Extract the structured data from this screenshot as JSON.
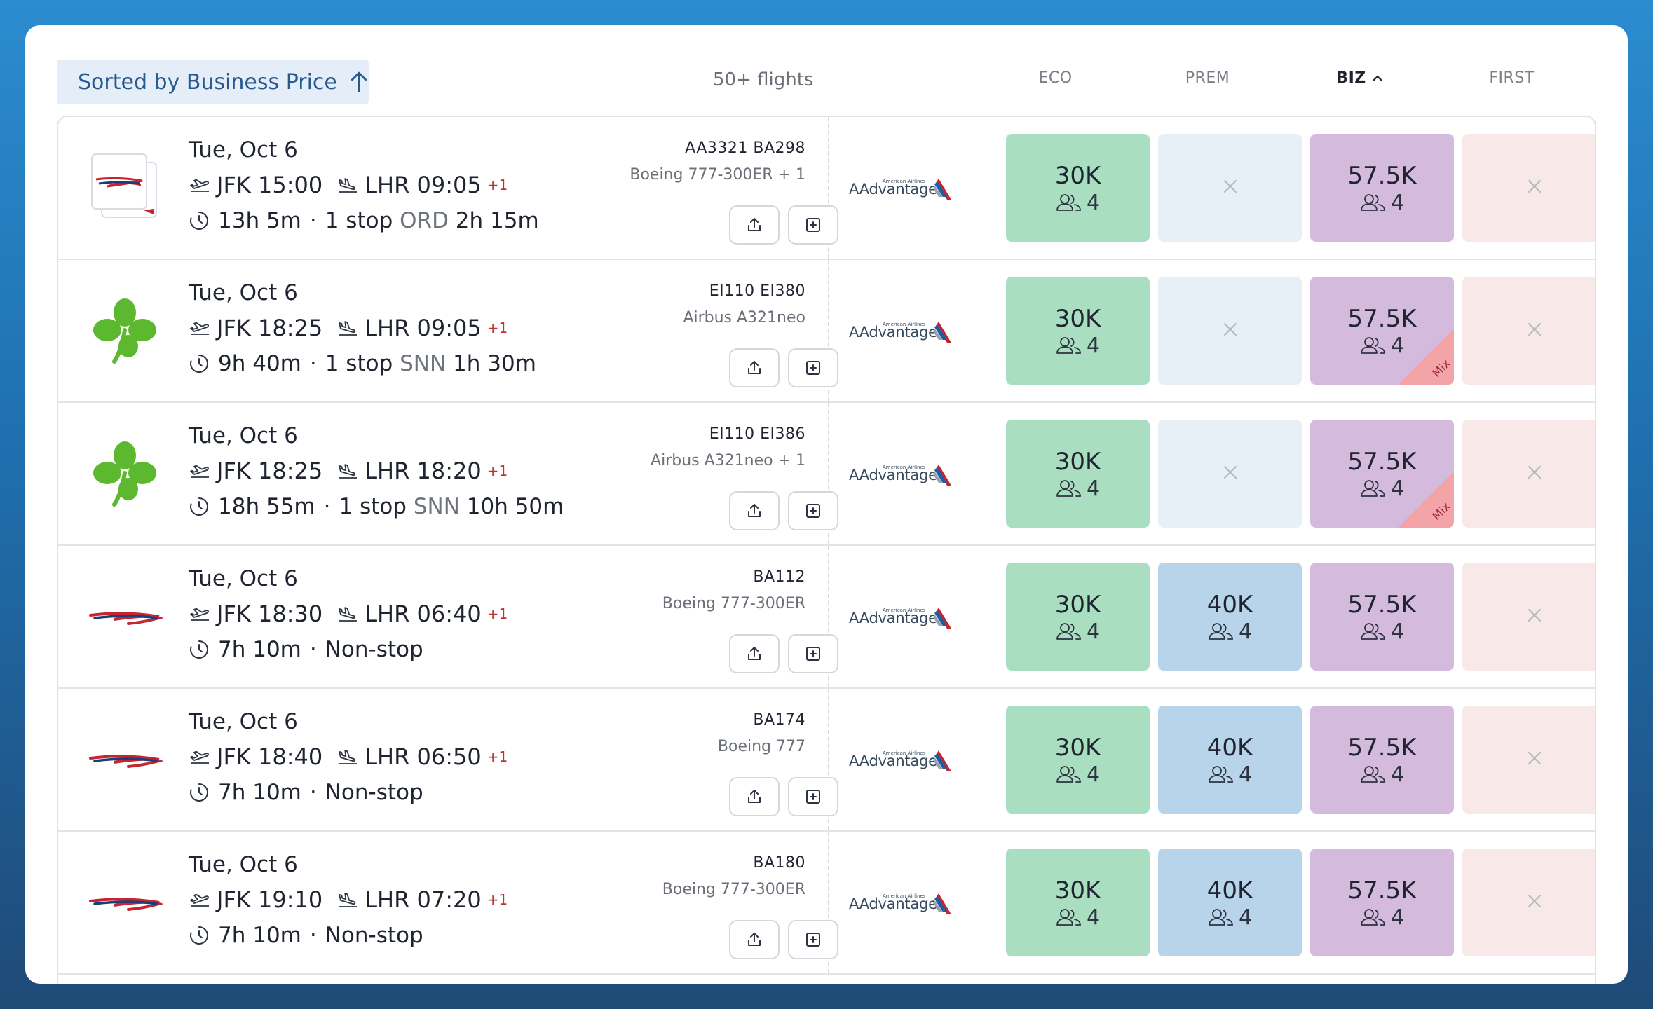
{
  "header": {
    "sort_label": "Sorted by Business Price",
    "flight_count": "50+ flights",
    "columns": [
      "ECO",
      "PREM",
      "BIZ",
      "FIRST"
    ],
    "active_column": "BIZ"
  },
  "program": "AAdvantage",
  "program_small": "American Airlines",
  "mix_label": "Mix",
  "flights": [
    {
      "airline": "British Airways + American Airlines",
      "date": "Tue, Oct 6",
      "dep_airport": "JFK",
      "dep_time": "15:00",
      "arr_airport": "LHR",
      "arr_time": "09:05",
      "day_offset": "+1",
      "duration": "13h 5m",
      "stops": "1 stop",
      "stop_airport": "ORD",
      "layover": "2h 15m",
      "flight_numbers": "AA3321  BA298",
      "aircraft": "Boeing 777-300ER + 1",
      "eco": {
        "price": "30K",
        "seats": "4"
      },
      "prem": null,
      "biz": {
        "price": "57.5K",
        "seats": "4",
        "mix": false
      },
      "first": null
    },
    {
      "airline": "Aer Lingus",
      "date": "Tue, Oct 6",
      "dep_airport": "JFK",
      "dep_time": "18:25",
      "arr_airport": "LHR",
      "arr_time": "09:05",
      "day_offset": "+1",
      "duration": "9h 40m",
      "stops": "1 stop",
      "stop_airport": "SNN",
      "layover": "1h 30m",
      "flight_numbers": "EI110  EI380",
      "aircraft": "Airbus A321neo",
      "eco": {
        "price": "30K",
        "seats": "4"
      },
      "prem": null,
      "biz": {
        "price": "57.5K",
        "seats": "4",
        "mix": true
      },
      "first": null
    },
    {
      "airline": "Aer Lingus",
      "date": "Tue, Oct 6",
      "dep_airport": "JFK",
      "dep_time": "18:25",
      "arr_airport": "LHR",
      "arr_time": "18:20",
      "day_offset": "+1",
      "duration": "18h 55m",
      "stops": "1 stop",
      "stop_airport": "SNN",
      "layover": "10h 50m",
      "flight_numbers": "EI110  EI386",
      "aircraft": "Airbus A321neo + 1",
      "eco": {
        "price": "30K",
        "seats": "4"
      },
      "prem": null,
      "biz": {
        "price": "57.5K",
        "seats": "4",
        "mix": true
      },
      "first": null
    },
    {
      "airline": "British Airways",
      "date": "Tue, Oct 6",
      "dep_airport": "JFK",
      "dep_time": "18:30",
      "arr_airport": "LHR",
      "arr_time": "06:40",
      "day_offset": "+1",
      "duration": "7h 10m",
      "stops": "Non-stop",
      "stop_airport": "",
      "layover": "",
      "flight_numbers": "BA112",
      "aircraft": "Boeing 777-300ER",
      "eco": {
        "price": "30K",
        "seats": "4"
      },
      "prem": {
        "price": "40K",
        "seats": "4"
      },
      "biz": {
        "price": "57.5K",
        "seats": "4",
        "mix": false
      },
      "first": null
    },
    {
      "airline": "British Airways",
      "date": "Tue, Oct 6",
      "dep_airport": "JFK",
      "dep_time": "18:40",
      "arr_airport": "LHR",
      "arr_time": "06:50",
      "day_offset": "+1",
      "duration": "7h 10m",
      "stops": "Non-stop",
      "stop_airport": "",
      "layover": "",
      "flight_numbers": "BA174",
      "aircraft": "Boeing 777",
      "eco": {
        "price": "30K",
        "seats": "4"
      },
      "prem": {
        "price": "40K",
        "seats": "4"
      },
      "biz": {
        "price": "57.5K",
        "seats": "4",
        "mix": false
      },
      "first": null
    },
    {
      "airline": "British Airways",
      "date": "Tue, Oct 6",
      "dep_airport": "JFK",
      "dep_time": "19:10",
      "arr_airport": "LHR",
      "arr_time": "07:20",
      "day_offset": "+1",
      "duration": "7h 10m",
      "stops": "Non-stop",
      "stop_airport": "",
      "layover": "",
      "flight_numbers": "BA180",
      "aircraft": "Boeing 777-300ER",
      "eco": {
        "price": "30K",
        "seats": "4"
      },
      "prem": {
        "price": "40K",
        "seats": "4"
      },
      "biz": {
        "price": "57.5K",
        "seats": "4",
        "mix": false
      },
      "first": null
    }
  ],
  "colors": {
    "eco": "#a9dfc0",
    "prem_available": "#b8d4ea",
    "prem_unavailable": "#e8f0f7",
    "biz": "#d4bbde",
    "first_unavailable": "#f8e8e8",
    "mix": "#f3a4a6",
    "accent": "#27598e",
    "day_offset": "#c2322b"
  },
  "icons": {
    "sort": "arrow-up-icon",
    "depart": "plane-takeoff-icon",
    "arrive": "plane-landing-icon",
    "duration": "clock-icon",
    "share": "share-icon",
    "add": "plus-square-icon",
    "seats": "people-icon",
    "unavailable": "close-icon"
  }
}
